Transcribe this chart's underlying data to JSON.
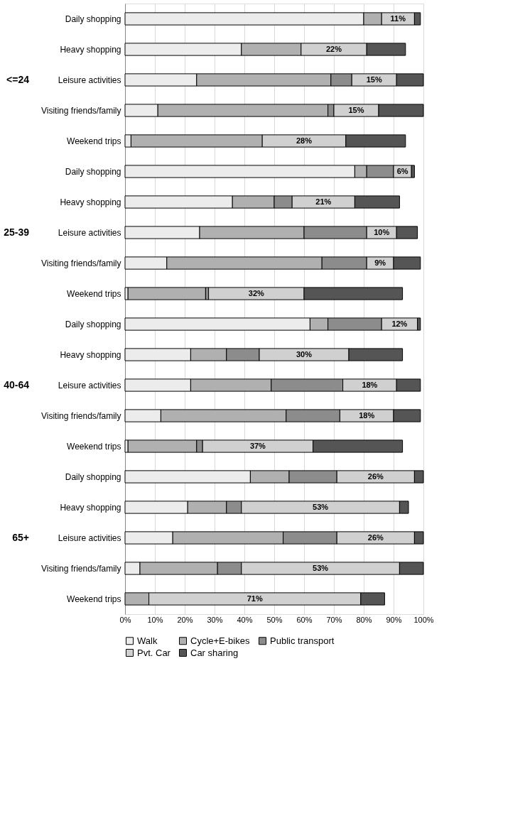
{
  "chart_data": {
    "type": "bar",
    "orientation": "horizontal",
    "stacked": true,
    "categories": [
      "Daily shopping",
      "Heavy shopping",
      "Leisure activities",
      "Visiting friends/family",
      "Weekend trips",
      "Daily shopping",
      "Heavy shopping",
      "Leisure activities",
      "Visiting friends/family",
      "Weekend trips",
      "Daily shopping",
      "Heavy shopping",
      "Leisure activities",
      "Visiting friends/family",
      "Weekend trips",
      "Daily shopping",
      "Heavy shopping",
      "Leisure activities",
      "Visiting friends/family",
      "Weekend trips"
    ],
    "annotations": [
      "<=24",
      "25-39",
      "40-64",
      "65+"
    ],
    "series": [
      {
        "name": "Walk",
        "color": "#ececec",
        "values": [
          80,
          39,
          24,
          11,
          2,
          77,
          36,
          25,
          14,
          1,
          62,
          22,
          22,
          12,
          1,
          42,
          21,
          16,
          5,
          0
        ]
      },
      {
        "name": "Cycle+E-bikes",
        "color": "#b0b0b0",
        "values": [
          6,
          20,
          45,
          57,
          44,
          4,
          14,
          35,
          52,
          26,
          6,
          12,
          27,
          42,
          23,
          13,
          13,
          37,
          26,
          8
        ]
      },
      {
        "name": "Public transport",
        "color": "#8c8c8c",
        "values": [
          0,
          0,
          7,
          2,
          0,
          9,
          6,
          21,
          15,
          1,
          18,
          11,
          24,
          18,
          2,
          16,
          5,
          18,
          8,
          0
        ]
      },
      {
        "name": "Pvt. Car",
        "color": "#d0d0d0",
        "values": [
          11,
          22,
          15,
          15,
          28,
          6,
          21,
          10,
          9,
          32,
          12,
          30,
          18,
          18,
          37,
          26,
          53,
          26,
          53,
          71
        ],
        "value_labels": [
          "11%",
          "22%",
          "15%",
          "15%",
          "28%",
          "6%",
          "21%",
          "10%",
          "9%",
          "32%",
          "12%",
          "30%",
          "18%",
          "18%",
          "37%",
          "26%",
          "53%",
          "26%",
          "53%",
          "71%"
        ]
      },
      {
        "name": "Car sharing",
        "color": "#555555",
        "values": [
          2,
          13,
          9,
          15,
          20,
          1,
          15,
          7,
          9,
          33,
          1,
          18,
          8,
          9,
          30,
          3,
          3,
          3,
          8,
          8
        ]
      }
    ],
    "xlim": [
      0,
      100
    ],
    "xticks": [
      {
        "value": 0,
        "label": "0%"
      },
      {
        "value": 10,
        "label": "10%"
      },
      {
        "value": 20,
        "label": "20%"
      },
      {
        "value": 30,
        "label": "30%"
      },
      {
        "value": 40,
        "label": "40%"
      },
      {
        "value": 50,
        "label": "50%"
      },
      {
        "value": 60,
        "label": "60%"
      },
      {
        "value": 70,
        "label": "70%"
      },
      {
        "value": 80,
        "label": "80%"
      },
      {
        "value": 90,
        "label": "90%"
      },
      {
        "value": 100,
        "label": "100%"
      }
    ],
    "grid": "x",
    "legend": "bottom"
  }
}
